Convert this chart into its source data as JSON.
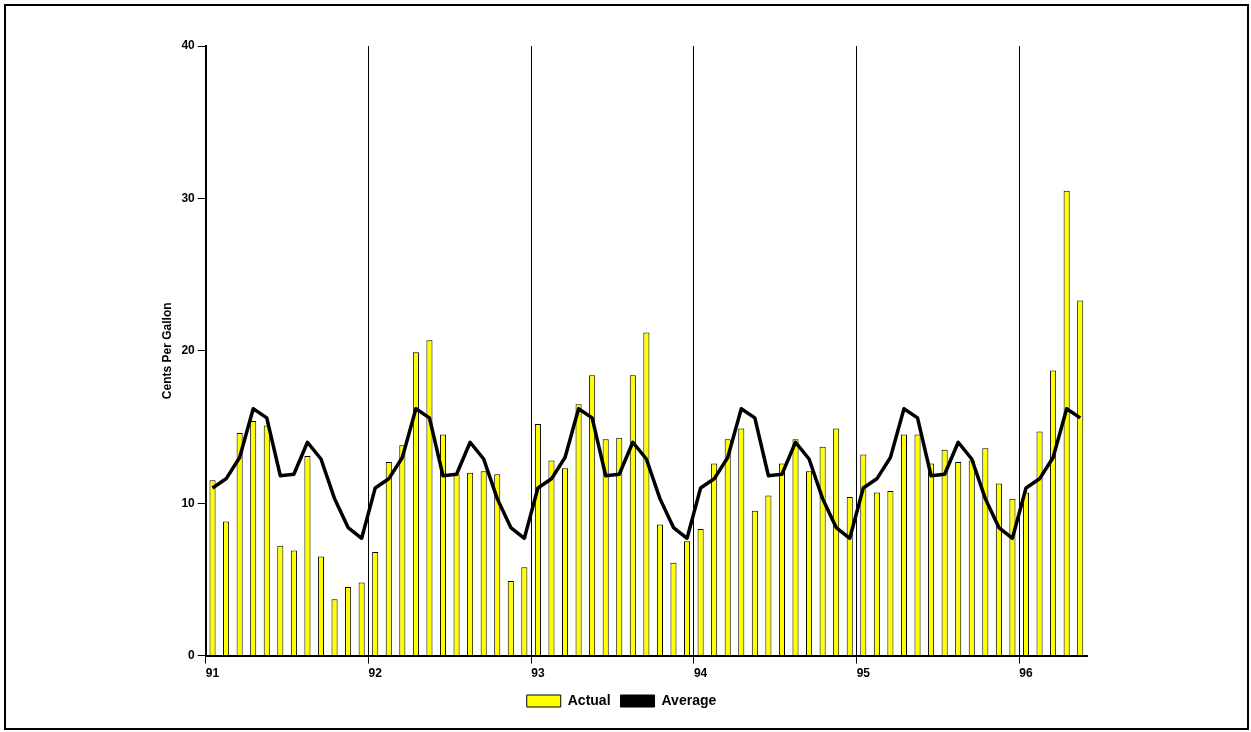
{
  "chart_data": {
    "type": "bar",
    "ylabel": "Cents Per Gallon",
    "categories": [
      "91",
      null,
      null,
      null,
      null,
      null,
      null,
      null,
      null,
      null,
      null,
      null,
      "92",
      null,
      null,
      null,
      null,
      null,
      null,
      null,
      null,
      null,
      null,
      null,
      "93",
      null,
      null,
      null,
      null,
      null,
      null,
      null,
      null,
      null,
      null,
      null,
      "94",
      null,
      null,
      null,
      null,
      null,
      null,
      null,
      null,
      null,
      null,
      null,
      "95",
      null,
      null,
      null,
      null,
      null,
      null,
      null,
      null,
      null,
      null,
      null,
      "96",
      null,
      null,
      null,
      null
    ],
    "series": [
      {
        "name": "Actual",
        "color": "#ffff00",
        "values": [
          11.5,
          8.8,
          14.6,
          15.4,
          15.1,
          7.2,
          6.9,
          13.1,
          6.5,
          3.7,
          4.5,
          4.8,
          6.8,
          12.7,
          13.8,
          19.9,
          20.7,
          14.5,
          11.9,
          12.0,
          12.1,
          11.9,
          4.9,
          5.8,
          15.2,
          12.8,
          12.3,
          16.5,
          18.4,
          14.2,
          14.3,
          18.4,
          21.2,
          8.6,
          6.1,
          7.5,
          8.3,
          12.6,
          14.2,
          14.9,
          9.5,
          10.5,
          12.6,
          14.2,
          12.1,
          13.7,
          14.9,
          10.4,
          13.2,
          10.7,
          10.8,
          14.5,
          14.5,
          12.6,
          13.5,
          12.7,
          12.8,
          13.6,
          11.3,
          10.3,
          10.7,
          14.7,
          18.7,
          30.5,
          23.3
        ]
      },
      {
        "name": "Average",
        "type": "line",
        "color": "#000000",
        "values": [
          11.0,
          11.6,
          13.0,
          16.2,
          15.6,
          11.8,
          11.9,
          14.0,
          12.9,
          10.3,
          8.4,
          7.7,
          11.0,
          11.6,
          13.0,
          16.2,
          15.6,
          11.8,
          11.9,
          14.0,
          12.9,
          10.3,
          8.4,
          7.7,
          11.0,
          11.6,
          13.0,
          16.2,
          15.6,
          11.8,
          11.9,
          14.0,
          12.9,
          10.3,
          8.4,
          7.7,
          11.0,
          11.6,
          13.0,
          16.2,
          15.6,
          11.8,
          11.9,
          14.0,
          12.9,
          10.3,
          8.4,
          7.7,
          11.0,
          11.6,
          13.0,
          16.2,
          15.6,
          11.8,
          11.9,
          14.0,
          12.9,
          10.3,
          8.4,
          7.7,
          11.0,
          11.6,
          13.0,
          16.2,
          15.6
        ]
      }
    ],
    "ylim": [
      0,
      40
    ],
    "yticks": [
      0,
      10,
      20,
      30,
      40
    ],
    "grid": "x",
    "legend": "bottom",
    "marker": "none",
    "line_style": "solid"
  }
}
